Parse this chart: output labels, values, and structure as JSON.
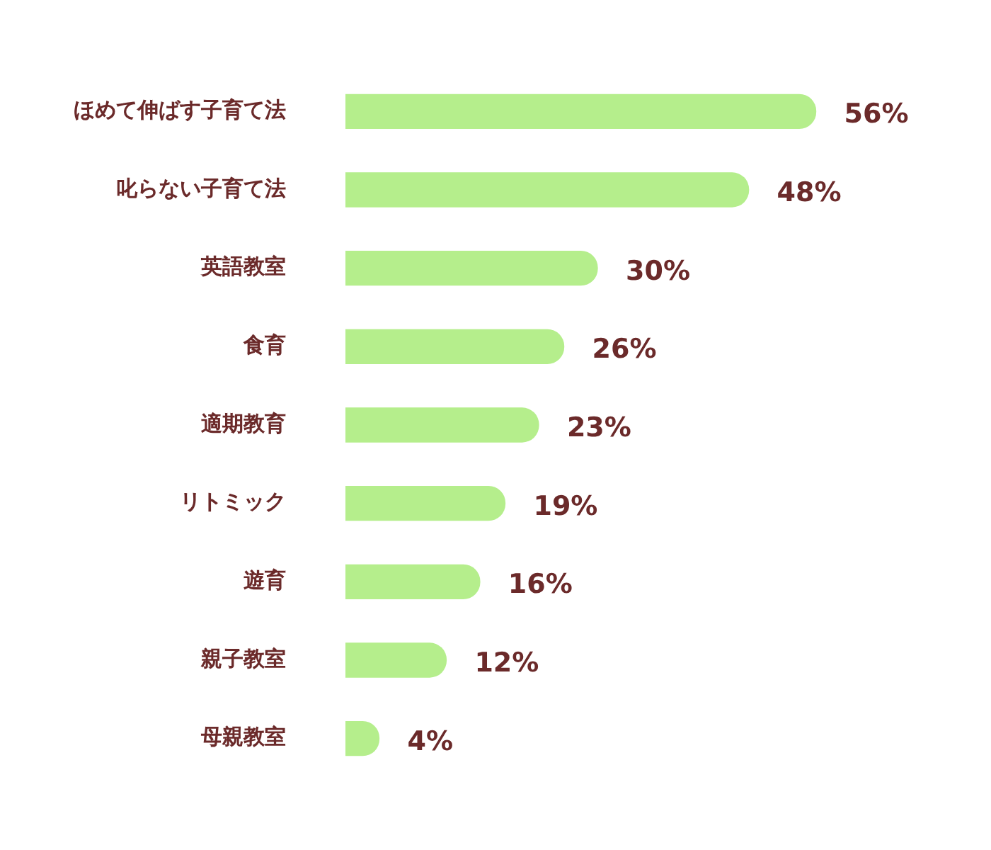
{
  "chart_data": {
    "type": "bar",
    "orientation": "horizontal",
    "categories": [
      "ほめて伸ばす子育て法",
      "叱らない子育て法",
      "英語教室",
      "食育",
      "適期教育",
      "リトミック",
      "遊育",
      "親子教室",
      "母親教室"
    ],
    "values": [
      56,
      48,
      30,
      26,
      23,
      19,
      16,
      12,
      4
    ],
    "color": "#b5ee8c",
    "value_labels": [
      "56%",
      "48%",
      "30%",
      "26%",
      "23%",
      "19%",
      "16%",
      "12%",
      "4%"
    ],
    "grid": false,
    "legend": false
  }
}
